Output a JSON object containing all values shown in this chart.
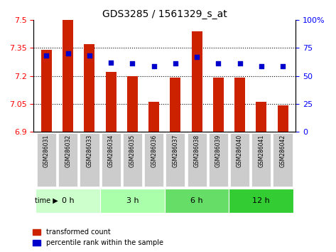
{
  "title": "GDS3285 / 1561329_s_at",
  "samples": [
    "GSM286031",
    "GSM286032",
    "GSM286033",
    "GSM286034",
    "GSM286035",
    "GSM286036",
    "GSM286037",
    "GSM286038",
    "GSM286039",
    "GSM286040",
    "GSM286041",
    "GSM286042"
  ],
  "bar_values": [
    7.34,
    7.5,
    7.37,
    7.22,
    7.2,
    7.06,
    7.19,
    7.44,
    7.19,
    7.19,
    7.06,
    7.04
  ],
  "percentile_values": [
    68,
    70,
    68,
    62,
    61,
    59,
    61,
    67,
    61,
    61,
    59,
    59
  ],
  "ylim_left": [
    6.9,
    7.5
  ],
  "ylim_right": [
    0,
    100
  ],
  "yticks_left": [
    6.9,
    7.05,
    7.2,
    7.35,
    7.5
  ],
  "yticks_right": [
    0,
    25,
    50,
    75,
    100
  ],
  "ytick_labels_left": [
    "6.9",
    "7.05",
    "7.2",
    "7.35",
    "7.5"
  ],
  "ytick_labels_right": [
    "0",
    "25",
    "50",
    "75",
    "100%"
  ],
  "bar_color": "#cc2200",
  "dot_color": "#0000cc",
  "time_groups": [
    {
      "label": "0 h",
      "start": 0,
      "end": 3,
      "color": "#ccffcc"
    },
    {
      "label": "3 h",
      "start": 3,
      "end": 6,
      "color": "#aaffaa"
    },
    {
      "label": "6 h",
      "start": 6,
      "end": 9,
      "color": "#66dd66"
    },
    {
      "label": "12 h",
      "start": 9,
      "end": 12,
      "color": "#33cc33"
    }
  ],
  "x_tick_bg": "#dddddd",
  "legend_bar_label": "transformed count",
  "legend_dot_label": "percentile rank within the sample",
  "time_label": "time",
  "baseline": 6.9,
  "grid_dotted_values": [
    7.05,
    7.2,
    7.35
  ]
}
